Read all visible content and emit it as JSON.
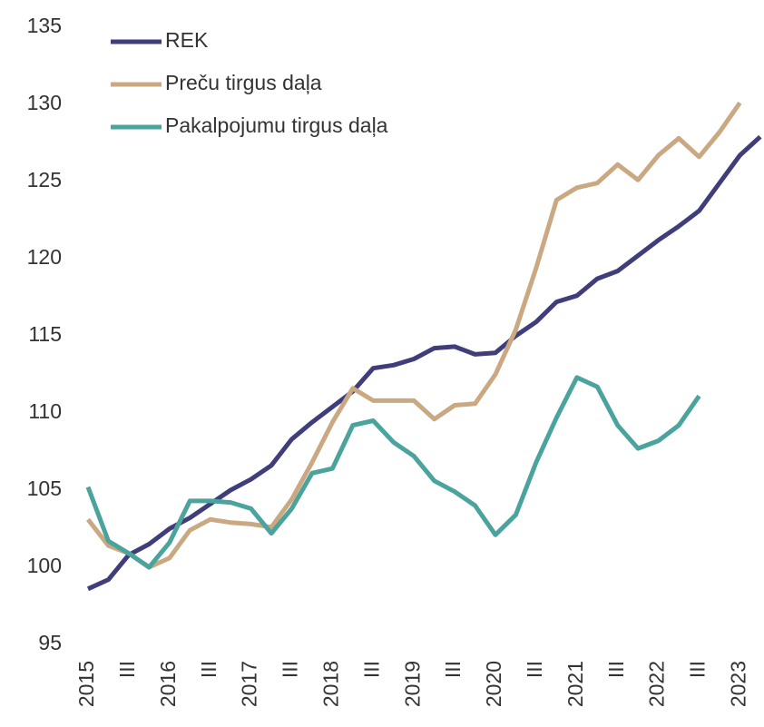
{
  "chart_data": {
    "type": "line",
    "categories": [
      "2015",
      null,
      "III",
      null,
      "2016",
      null,
      "III",
      null,
      "2017",
      null,
      "III",
      null,
      "2018",
      null,
      "III",
      null,
      "2019",
      null,
      "III",
      null,
      "2020",
      null,
      "III",
      null,
      "2021",
      null,
      "III",
      null,
      "2022",
      null,
      "III",
      null,
      "2023",
      null
    ],
    "series": [
      {
        "name": "REK",
        "color": "#3f3d7a",
        "values": [
          98.6,
          99.2,
          100.8,
          101.5,
          102.5,
          103.2,
          104.1,
          105.0,
          105.7,
          106.6,
          108.3,
          109.4,
          110.4,
          111.4,
          112.9,
          113.1,
          113.5,
          114.2,
          114.3,
          113.8,
          113.9,
          115.0,
          115.9,
          117.2,
          117.6,
          118.7,
          119.2,
          120.2,
          121.2,
          122.1,
          123.1,
          124.9,
          126.7,
          127.9
        ]
      },
      {
        "name": "Preču tirgus daļa",
        "color": "#c9a882",
        "values": [
          103.1,
          101.4,
          100.9,
          100.0,
          100.6,
          102.4,
          103.1,
          102.9,
          102.8,
          102.6,
          104.4,
          106.8,
          109.4,
          111.6,
          110.8,
          110.8,
          110.8,
          109.6,
          110.5,
          110.6,
          112.5,
          115.4,
          119.4,
          123.8,
          124.6,
          124.9,
          126.1,
          125.1,
          126.7,
          127.8,
          126.6,
          128.2,
          130.1,
          null
        ]
      },
      {
        "name": "Pakalpojumu tirgus daļa",
        "color": "#4aa39d",
        "values": [
          105.2,
          101.7,
          100.9,
          100.0,
          101.6,
          104.3,
          104.3,
          104.2,
          103.8,
          102.2,
          103.8,
          106.1,
          106.4,
          109.2,
          109.5,
          108.1,
          107.2,
          105.6,
          104.9,
          104.0,
          102.1,
          103.4,
          106.8,
          109.7,
          112.3,
          111.7,
          109.2,
          107.7,
          108.2,
          109.2,
          111.1,
          null,
          null,
          null
        ]
      }
    ],
    "ylim": [
      95,
      135
    ],
    "yticks": [
      95,
      100,
      105,
      110,
      115,
      120,
      125,
      130,
      135
    ],
    "legend": "upper left",
    "grid": false
  }
}
